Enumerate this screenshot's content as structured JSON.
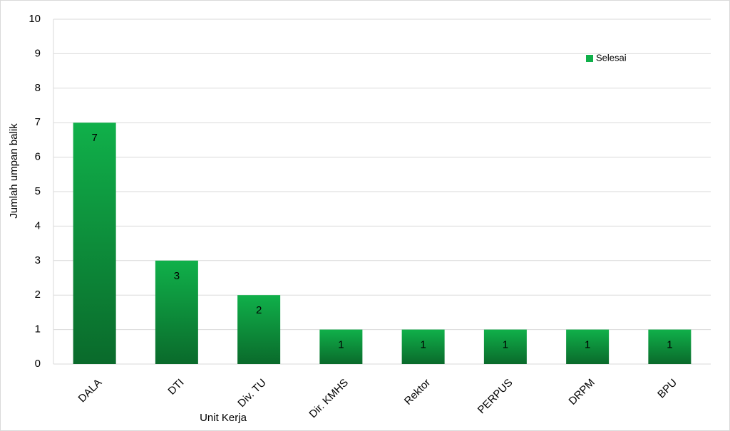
{
  "chart_data": {
    "type": "bar",
    "y_label": "Jumlah umpan balik",
    "x_label": "Unit Kerja",
    "categories": [
      "DALA",
      "DTI",
      "Div. TU",
      "Dir. KMHS",
      "Rektor",
      "PERPUS",
      "DRPM",
      "BPU"
    ],
    "series": [
      {
        "name": "Selesai",
        "color": "#10b04a",
        "values": [
          7,
          3,
          2,
          1,
          1,
          1,
          1,
          1
        ]
      }
    ],
    "ylim": [
      0,
      10
    ],
    "yticks": [
      0,
      1,
      2,
      3,
      4,
      5,
      6,
      7,
      8,
      9,
      10
    ],
    "grid": true,
    "legend": "upper right",
    "data_labels": true
  }
}
